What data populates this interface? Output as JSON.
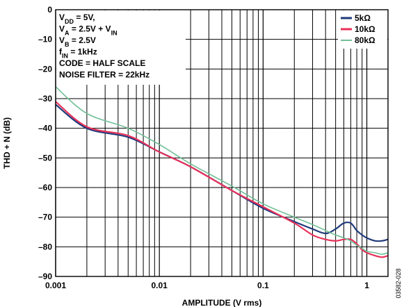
{
  "chart_data": {
    "type": "line",
    "xlabel": "AMPLITUDE (V rms)",
    "ylabel": "THD + N (dB)",
    "xscale": "log",
    "xlim": [
      0.001,
      1.6
    ],
    "ylim": [
      -90,
      0
    ],
    "grid": true,
    "x_ticks": [
      "0.001",
      "0.01",
      "0.1",
      "1"
    ],
    "y_ticks": [
      "0",
      "–10",
      "–20",
      "–30",
      "–40",
      "–50",
      "–60",
      "–70",
      "–80",
      "–90"
    ],
    "conditions": [
      {
        "runs": [
          {
            "t": "V",
            "s": "n"
          },
          {
            "t": "DD",
            "s": "sub"
          },
          {
            "t": " = 5V,",
            "s": "n"
          }
        ]
      },
      {
        "runs": [
          {
            "t": "V",
            "s": "n"
          },
          {
            "t": "A",
            "s": "sub"
          },
          {
            "t": " = 2.5V + V",
            "s": "n"
          },
          {
            "t": "IN",
            "s": "sub"
          }
        ]
      },
      {
        "runs": [
          {
            "t": "V",
            "s": "n"
          },
          {
            "t": "B",
            "s": "sub"
          },
          {
            "t": " = 2.5V",
            "s": "n"
          }
        ]
      },
      {
        "runs": [
          {
            "t": "f",
            "s": "n"
          },
          {
            "t": "IN",
            "s": "sub"
          },
          {
            "t": " = 1kHz",
            "s": "n"
          }
        ]
      },
      {
        "runs": [
          {
            "t": "CODE = HALF SCALE",
            "s": "n"
          }
        ]
      },
      {
        "runs": [
          {
            "t": "NOISE FILTER = 22kHz",
            "s": "n"
          }
        ]
      }
    ],
    "figure_id": "03582-028",
    "legend_position": "top-right",
    "series": [
      {
        "name": "5kΩ",
        "color": "#1f3a7a",
        "points": [
          [
            0.001,
            -32
          ],
          [
            0.002,
            -40
          ],
          [
            0.005,
            -43
          ],
          [
            0.01,
            -48
          ],
          [
            0.02,
            -53
          ],
          [
            0.05,
            -61
          ],
          [
            0.1,
            -67
          ],
          [
            0.2,
            -71.5
          ],
          [
            0.3,
            -74
          ],
          [
            0.4,
            -75.5
          ],
          [
            0.5,
            -74
          ],
          [
            0.6,
            -72
          ],
          [
            0.7,
            -72
          ],
          [
            0.8,
            -74.5
          ],
          [
            0.9,
            -76
          ],
          [
            1.0,
            -77
          ],
          [
            1.2,
            -78
          ],
          [
            1.4,
            -78
          ],
          [
            1.6,
            -77.5
          ]
        ]
      },
      {
        "name": "10kΩ",
        "color": "#e8315a",
        "points": [
          [
            0.001,
            -31
          ],
          [
            0.002,
            -39.5
          ],
          [
            0.005,
            -42.5
          ],
          [
            0.01,
            -48
          ],
          [
            0.02,
            -53
          ],
          [
            0.05,
            -61
          ],
          [
            0.1,
            -66.5
          ],
          [
            0.2,
            -72
          ],
          [
            0.3,
            -76
          ],
          [
            0.4,
            -77.5
          ],
          [
            0.5,
            -78
          ],
          [
            0.6,
            -77.5
          ],
          [
            0.7,
            -77.5
          ],
          [
            0.8,
            -79
          ],
          [
            0.9,
            -81
          ],
          [
            1.0,
            -82
          ],
          [
            1.2,
            -83
          ],
          [
            1.4,
            -83.5
          ],
          [
            1.6,
            -83
          ]
        ]
      },
      {
        "name": "80kΩ",
        "color": "#6fbf96",
        "points": [
          [
            0.001,
            -26
          ],
          [
            0.002,
            -35
          ],
          [
            0.005,
            -40
          ],
          [
            0.01,
            -45.5
          ],
          [
            0.02,
            -52
          ],
          [
            0.05,
            -59.5
          ],
          [
            0.1,
            -65.5
          ],
          [
            0.2,
            -70
          ],
          [
            0.3,
            -72.5
          ],
          [
            0.4,
            -74.5
          ],
          [
            0.5,
            -76
          ],
          [
            0.6,
            -77
          ],
          [
            0.7,
            -78
          ],
          [
            0.8,
            -79.5
          ],
          [
            0.9,
            -80.5
          ],
          [
            1.0,
            -81.5
          ],
          [
            1.2,
            -82
          ],
          [
            1.4,
            -82.5
          ],
          [
            1.6,
            -82
          ]
        ]
      }
    ]
  }
}
